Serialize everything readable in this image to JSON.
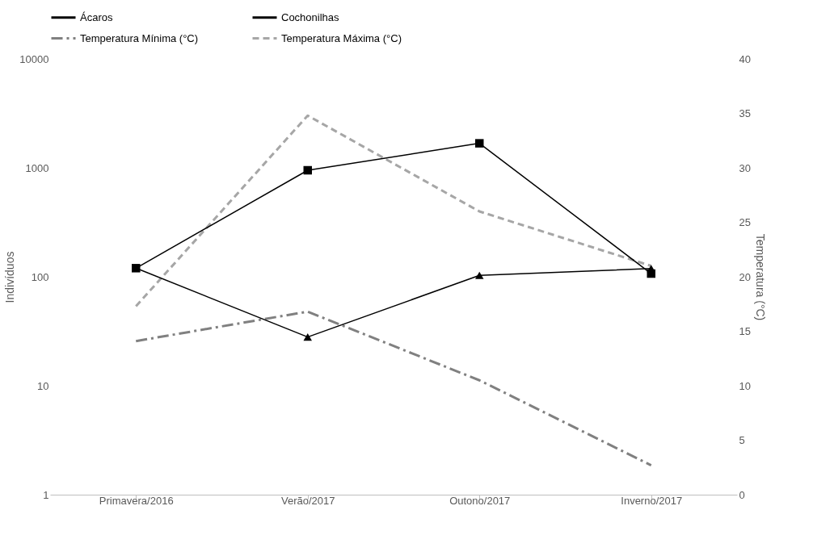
{
  "chart_data": {
    "type": "line",
    "categories": [
      "Primavera/2016",
      "Verão/2017",
      "Outono/2017",
      "Inverno/2017"
    ],
    "ylabel": "Indivíduos",
    "y2label": "Temperatura (°C)",
    "log": "y",
    "ylim": [
      1,
      10000
    ],
    "yticks": [
      1,
      10,
      100,
      1000,
      10000
    ],
    "y2lim": [
      0,
      40
    ],
    "y2ticks": [
      0,
      5,
      10,
      15,
      20,
      25,
      30,
      35,
      40
    ],
    "grid": false,
    "legend": "top",
    "series": [
      {
        "name": "Ácaros",
        "color": "#000000",
        "marker": "square",
        "line_style": "solid",
        "values": [
          120,
          950,
          1680,
          107
        ]
      },
      {
        "name": "Cochonilhas",
        "color": "#000000",
        "marker": "triangle",
        "line_style": "solid",
        "values": [
          120,
          28,
          103,
          119
        ]
      },
      {
        "name": "Temperatura Mínima (°C)",
        "color": "#808080",
        "marker": "none",
        "line_style": "dashdot",
        "axis": "y2",
        "values": [
          14.1,
          16.8,
          10.5,
          2.7
        ]
      },
      {
        "name": "Temperatura Máxima (°C)",
        "color": "#a6a6a6",
        "marker": "none",
        "line_style": "dashed",
        "axis": "y2",
        "values": [
          17.3,
          34.8,
          26,
          21
        ]
      }
    ]
  }
}
